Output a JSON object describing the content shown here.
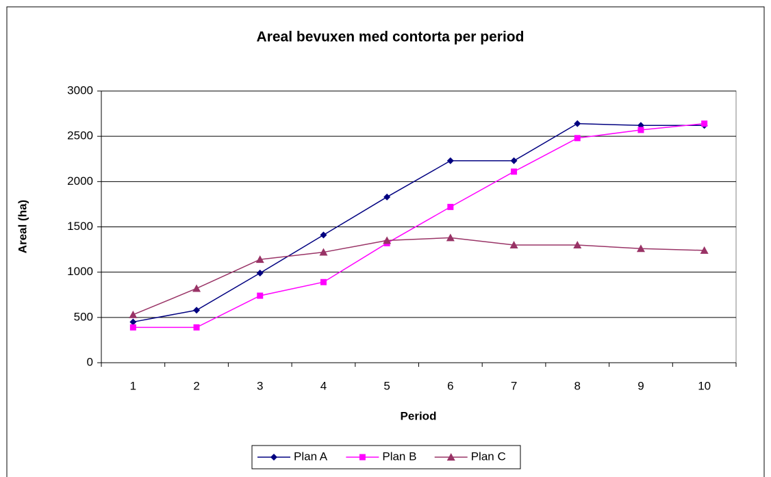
{
  "chart_data": {
    "type": "line",
    "title": "Areal bevuxen med contorta per period",
    "xlabel": "Period",
    "ylabel": "Areal (ha)",
    "categories": [
      "1",
      "2",
      "3",
      "4",
      "5",
      "6",
      "7",
      "8",
      "9",
      "10"
    ],
    "series": [
      {
        "name": "Plan A",
        "color": "#000080",
        "marker": "diamond",
        "values": [
          450,
          580,
          990,
          1410,
          1830,
          2230,
          2230,
          2640,
          2620,
          2620
        ]
      },
      {
        "name": "Plan B",
        "color": "#ff00ff",
        "marker": "square",
        "values": [
          390,
          390,
          740,
          890,
          1320,
          1720,
          2110,
          2480,
          2570,
          2640
        ]
      },
      {
        "name": "Plan C",
        "color": "#993366",
        "marker": "triangle",
        "values": [
          530,
          820,
          1140,
          1220,
          1350,
          1380,
          1300,
          1300,
          1260,
          1240
        ]
      }
    ],
    "ylim": [
      0,
      3000
    ],
    "yticks": [
      0,
      500,
      1000,
      1500,
      2000,
      2500,
      3000
    ],
    "grid": true,
    "legend": "bottom"
  }
}
